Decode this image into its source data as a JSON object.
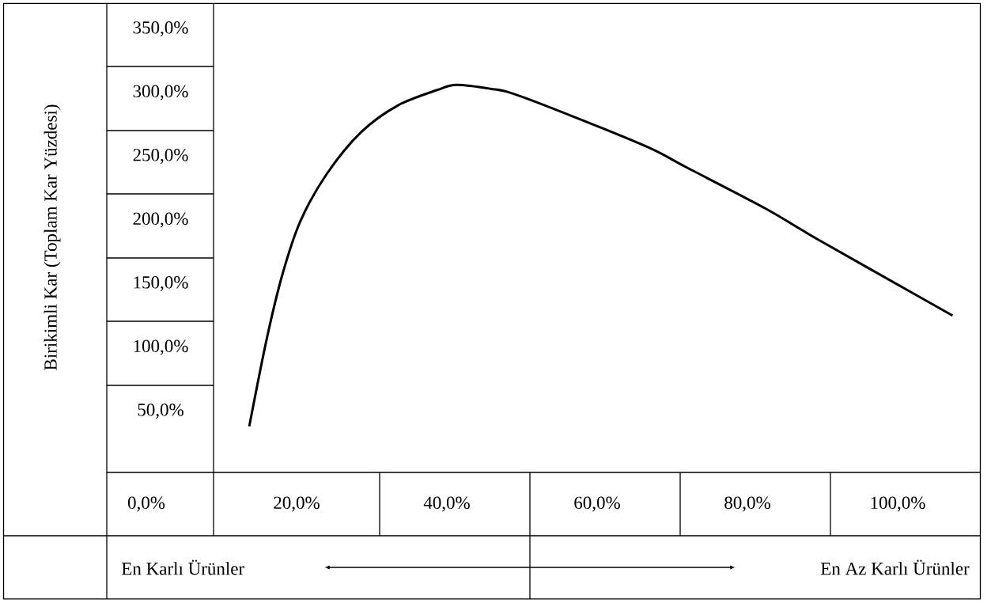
{
  "chart_data": {
    "type": "line",
    "xlabel": null,
    "ylabel": "Birikimli Kar (Toplam Kar Yüzdesi)",
    "x": [
      13.7,
      16.0,
      18.1,
      20.5,
      24.0,
      28.6,
      33.5,
      38.7,
      41.3,
      45.8,
      48.9,
      56.9,
      66.8,
      72.0,
      82.4,
      89.6,
      103.1,
      107.3
    ],
    "series": [
      {
        "color": "#000000",
        "values": [
          38,
          106,
          157,
          199,
          236,
          269,
          290,
          302,
          306,
          303,
          299,
          281,
          257,
          241,
          209,
          184,
          139,
          125
        ]
      }
    ],
    "xlim": [
      -19,
      111
    ],
    "ylim": [
      -97.5,
      370
    ],
    "xticks": [
      {
        "value": 0,
        "label": "0,0%"
      },
      {
        "value": 20,
        "label": "20,0%"
      },
      {
        "value": 40,
        "label": "40,0%"
      },
      {
        "value": 60,
        "label": "60,0%"
      },
      {
        "value": 80,
        "label": "80,0%"
      },
      {
        "value": 100,
        "label": "100,0%"
      }
    ],
    "yticks": [
      {
        "value": 50,
        "label": "50,0%"
      },
      {
        "value": 100,
        "label": "100,0%"
      },
      {
        "value": 150,
        "label": "150,0%"
      },
      {
        "value": 200,
        "label": "200,0%"
      },
      {
        "value": 250,
        "label": "250,0%"
      },
      {
        "value": 300,
        "label": "300,0%"
      },
      {
        "value": 350,
        "label": "350,0%"
      }
    ],
    "annotations": [
      "En Karlı Ürünler",
      "En Az Karlı Ürünler"
    ],
    "grid": false,
    "marker": "none",
    "line_style": "solid"
  }
}
